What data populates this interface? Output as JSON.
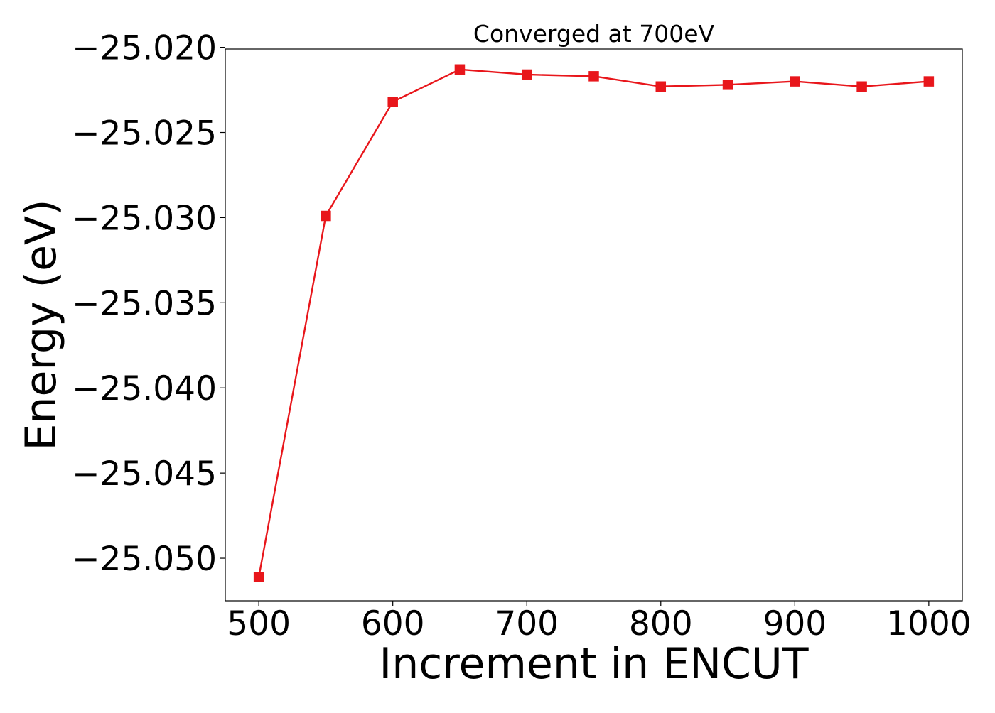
{
  "chart_data": {
    "type": "line",
    "title": "Converged at 700eV",
    "xlabel": "Increment in ENCUT",
    "ylabel": "Energy (eV)",
    "x": [
      500,
      550,
      600,
      650,
      700,
      750,
      800,
      850,
      900,
      950,
      1000
    ],
    "series": [
      {
        "values": [
          -25.0511,
          -25.0299,
          -25.0232,
          -25.0213,
          -25.0216,
          -25.0217,
          -25.0223,
          -25.0222,
          -25.022,
          -25.0223,
          -25.022
        ],
        "color": "#e8161b",
        "marker": "square"
      }
    ],
    "xlim": [
      475,
      1025
    ],
    "ylim": [
      -25.0525,
      -25.0201
    ],
    "xticks": [
      500,
      600,
      700,
      800,
      900,
      1000
    ],
    "xtick_labels": [
      "500",
      "600",
      "700",
      "800",
      "900",
      "1000"
    ],
    "yticks": [
      -25.02,
      -25.025,
      -25.03,
      -25.035,
      -25.04,
      -25.045,
      -25.05
    ],
    "ytick_labels": [
      "−25.020",
      "−25.025",
      "−25.030",
      "−25.035",
      "−25.040",
      "−25.045",
      "−25.050"
    ],
    "grid": false,
    "legend": "none"
  }
}
